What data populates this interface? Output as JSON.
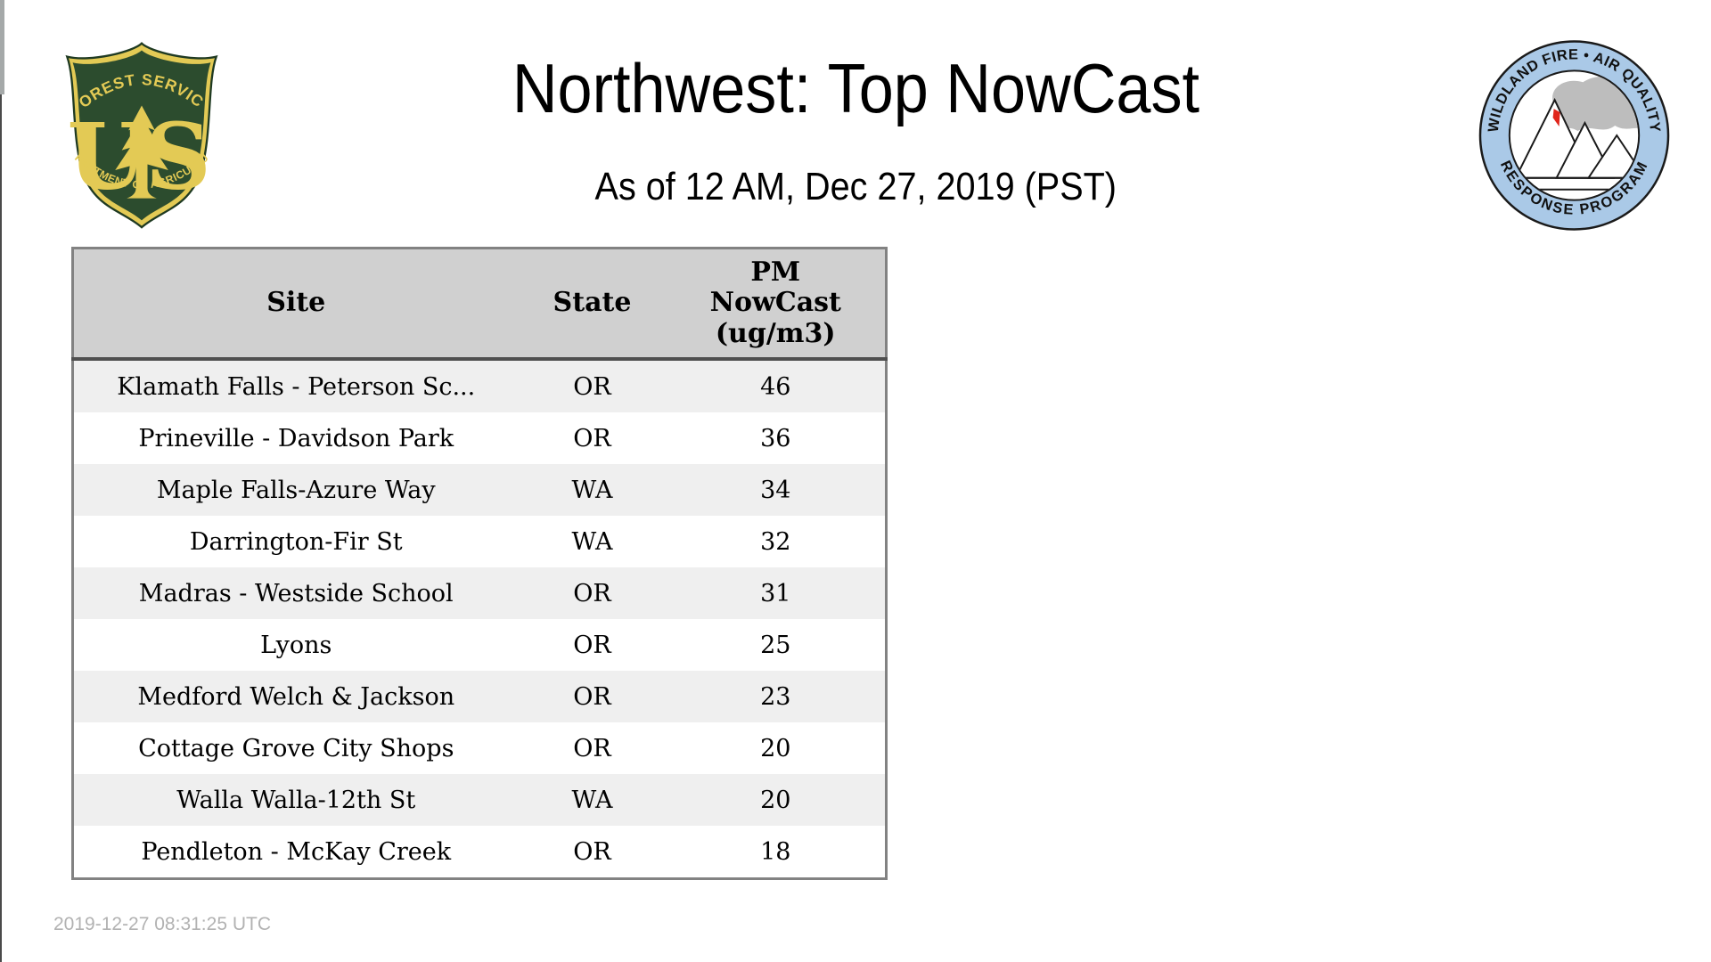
{
  "header": {
    "title": "Northwest: Top NowCast",
    "subtitle": "As of 12 AM, Dec 27, 2019 (PST)"
  },
  "footer": {
    "timestamp": "2019-12-27 08:31:25 UTC"
  },
  "logos": {
    "forest_service": {
      "label": "US Forest Service shield",
      "arc_top": "FOREST SERVICE",
      "letter_u": "U",
      "letter_s": "S",
      "arc_bottom": "DEPARTMENT OF AGRICULTURE",
      "green": "#2c4c2e",
      "gold": "#e3ca55"
    },
    "air_quality_program": {
      "label": "Wildland Fire Air Quality Response Program seal",
      "arc_top": "WILDLAND FIRE • AIR QUALITY",
      "arc_bottom": "RESPONSE PROGRAM",
      "ring_blue": "#aac9e7",
      "smoke_gray": "#bdbdbd",
      "fire_red": "#e0251b"
    }
  },
  "table": {
    "columns": [
      {
        "key": "site",
        "label": "Site"
      },
      {
        "key": "state",
        "label": "State"
      },
      {
        "key": "value",
        "label": "PM NowCast (ug/m3)"
      }
    ],
    "rows": [
      {
        "site": "Klamath Falls - Peterson Sc...",
        "state": "OR",
        "value": "46"
      },
      {
        "site": "Prineville - Davidson Park",
        "state": "OR",
        "value": "36"
      },
      {
        "site": "Maple Falls-Azure Way",
        "state": "WA",
        "value": "34"
      },
      {
        "site": "Darrington-Fir St",
        "state": "WA",
        "value": "32"
      },
      {
        "site": "Madras - Westside School",
        "state": "OR",
        "value": "31"
      },
      {
        "site": "Lyons",
        "state": "OR",
        "value": "25"
      },
      {
        "site": "Medford Welch & Jackson",
        "state": "OR",
        "value": "23"
      },
      {
        "site": "Cottage Grove City Shops",
        "state": "OR",
        "value": "20"
      },
      {
        "site": "Walla Walla-12th St",
        "state": "WA",
        "value": "20"
      },
      {
        "site": "Pendleton - McKay Creek",
        "state": "OR",
        "value": "18"
      }
    ],
    "colors": {
      "header_bg": "#d0d0d0",
      "row_alt_bg": "#efefef",
      "border_gray": "#828282",
      "header_rule": "#4f4f4f"
    }
  }
}
